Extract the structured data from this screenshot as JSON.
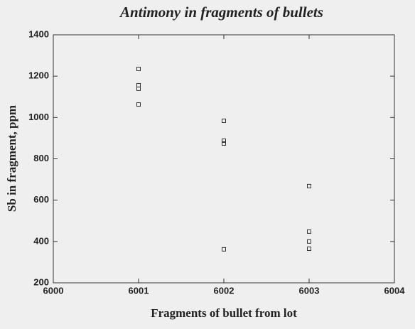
{
  "chart_data": {
    "type": "scatter",
    "title": "Antimony  in  fragments  of  bullets",
    "xlabel": "Fragments of bullet from lot",
    "ylabel": "Sb in fragment, ppm",
    "x": [
      6001,
      6001,
      6001,
      6001,
      6002,
      6002,
      6002,
      6002,
      6003,
      6003,
      6003,
      6003
    ],
    "y": [
      1235,
      1156,
      1139,
      1063,
      984,
      888,
      874,
      362,
      668,
      448,
      400,
      365
    ],
    "xlim": [
      6000,
      6004
    ],
    "ylim": [
      200,
      1400
    ],
    "xticks": [
      6000,
      6001,
      6002,
      6003,
      6004
    ],
    "yticks": [
      200,
      400,
      600,
      800,
      1000,
      1200,
      1400
    ],
    "color": "#333333"
  }
}
